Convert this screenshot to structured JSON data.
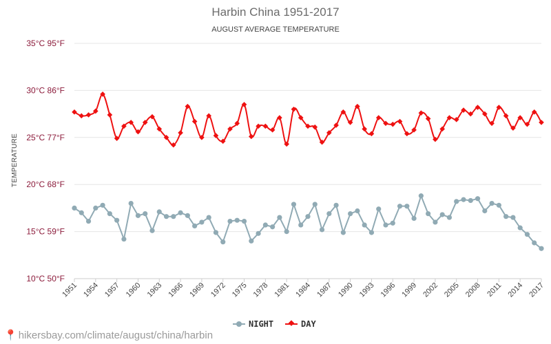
{
  "chart_data": {
    "type": "line",
    "title": "Harbin China 1951-2017",
    "subtitle": "AUGUST AVERAGE TEMPERATURE",
    "ylabel": "TEMPERATURE",
    "xlabel": "",
    "ylim": [
      10,
      35
    ],
    "y_ticks": [
      {
        "value": 35,
        "label": "35°C 95°F"
      },
      {
        "value": 30,
        "label": "30°C 86°F"
      },
      {
        "value": 25,
        "label": "25°C 77°F"
      },
      {
        "value": 20,
        "label": "20°C 68°F"
      },
      {
        "value": 15,
        "label": "15°C 59°F"
      },
      {
        "value": 10,
        "label": "10°C 50°F"
      }
    ],
    "x_start": 1951,
    "x_end": 2017,
    "x_tick_labels": [
      "1951",
      "1954",
      "1957",
      "1960",
      "1963",
      "1966",
      "1969",
      "1972",
      "1975",
      "1978",
      "1981",
      "1984",
      "1987",
      "1990",
      "1993",
      "1996",
      "1999",
      "2002",
      "2005",
      "2008",
      "2011",
      "2014",
      "2017"
    ],
    "grid": true,
    "legend_position": "bottom-center",
    "series": [
      {
        "name": "NIGHT",
        "color": "#90aab4",
        "values": [
          17.5,
          17.0,
          16.1,
          17.5,
          17.8,
          16.9,
          16.2,
          14.2,
          18.0,
          16.7,
          16.9,
          15.1,
          17.1,
          16.6,
          16.6,
          17.0,
          16.7,
          15.6,
          16.0,
          16.5,
          14.9,
          13.9,
          16.1,
          16.2,
          16.1,
          14.0,
          14.8,
          15.7,
          15.5,
          16.5,
          15.0,
          17.9,
          15.7,
          16.6,
          17.9,
          15.2,
          16.9,
          17.8,
          14.9,
          16.9,
          17.2,
          15.7,
          14.9,
          17.4,
          15.7,
          15.9,
          17.7,
          17.7,
          16.4,
          18.8,
          16.9,
          16.0,
          16.8,
          16.5,
          18.2,
          18.4,
          18.3,
          18.5,
          17.2,
          18.0,
          17.8,
          16.6,
          16.5,
          15.4,
          14.7,
          13.8,
          13.2
        ]
      },
      {
        "name": "DAY",
        "color": "#ee1111",
        "values": [
          27.7,
          27.3,
          27.4,
          27.8,
          29.6,
          27.4,
          24.9,
          26.2,
          26.6,
          25.6,
          26.6,
          27.2,
          25.9,
          25.0,
          24.2,
          25.5,
          28.3,
          26.7,
          25.0,
          27.3,
          25.2,
          24.6,
          25.9,
          26.5,
          28.5,
          25.1,
          26.2,
          26.2,
          25.8,
          27.1,
          24.3,
          28.0,
          27.1,
          26.2,
          26.1,
          24.5,
          25.5,
          26.3,
          27.7,
          26.6,
          28.3,
          25.9,
          25.4,
          27.1,
          26.5,
          26.4,
          26.7,
          25.4,
          25.8,
          27.6,
          27.0,
          24.8,
          25.9,
          27.1,
          26.9,
          27.9,
          27.5,
          28.2,
          27.5,
          26.5,
          28.2,
          27.3,
          26.0,
          27.1,
          26.4,
          27.7,
          26.6
        ]
      }
    ]
  },
  "footer": {
    "pin_icon": "📍",
    "watermark": "hikersbay.com/climate/august/china/harbin"
  }
}
